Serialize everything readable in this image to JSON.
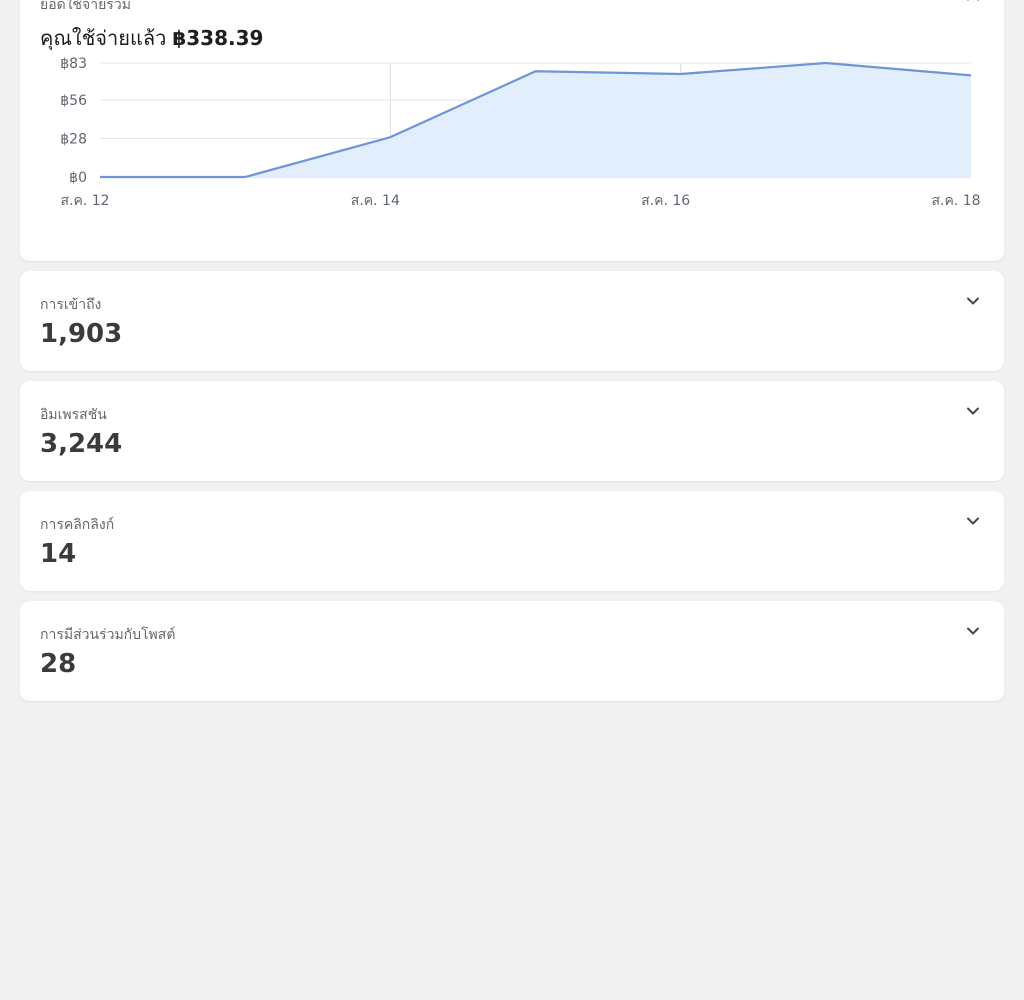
{
  "spend_card": {
    "label": "ยอดใช้จ่ายรวม",
    "total_prefix": "คุณใช้จ่ายแล้ว",
    "total_amount": "฿338.39",
    "expand_icon": "chevron-up-icon"
  },
  "chart_data": {
    "type": "area",
    "x": [
      "ส.ค. 12",
      "ส.ค. 13",
      "ส.ค. 14",
      "ส.ค. 15",
      "ส.ค. 16",
      "ส.ค. 17",
      "ส.ค. 18"
    ],
    "x_tick_labels": [
      "ส.ค. 12",
      "ส.ค. 14",
      "ส.ค. 16",
      "ส.ค. 18"
    ],
    "y_tick_labels": [
      "฿0",
      "฿28",
      "฿56",
      "฿83"
    ],
    "y_ticks": [
      0,
      28,
      56,
      83
    ],
    "ylim": [
      0,
      83
    ],
    "series": [
      {
        "values": [
          0,
          0,
          29,
          77,
          75,
          83,
          74
        ]
      }
    ],
    "line_color": "#6f94d8",
    "fill_color": "#e3eefc",
    "grid": true
  },
  "metrics": [
    {
      "label": "การเข้าถึง",
      "value": "1,903"
    },
    {
      "label": "อิมเพรสชัน",
      "value": "3,244"
    },
    {
      "label": "การคลิกลิงก์",
      "value": "14"
    },
    {
      "label": "การมีส่วนร่วมกับโพสต์",
      "value": "28"
    }
  ],
  "metric_expand_icon": "chevron-down-icon"
}
